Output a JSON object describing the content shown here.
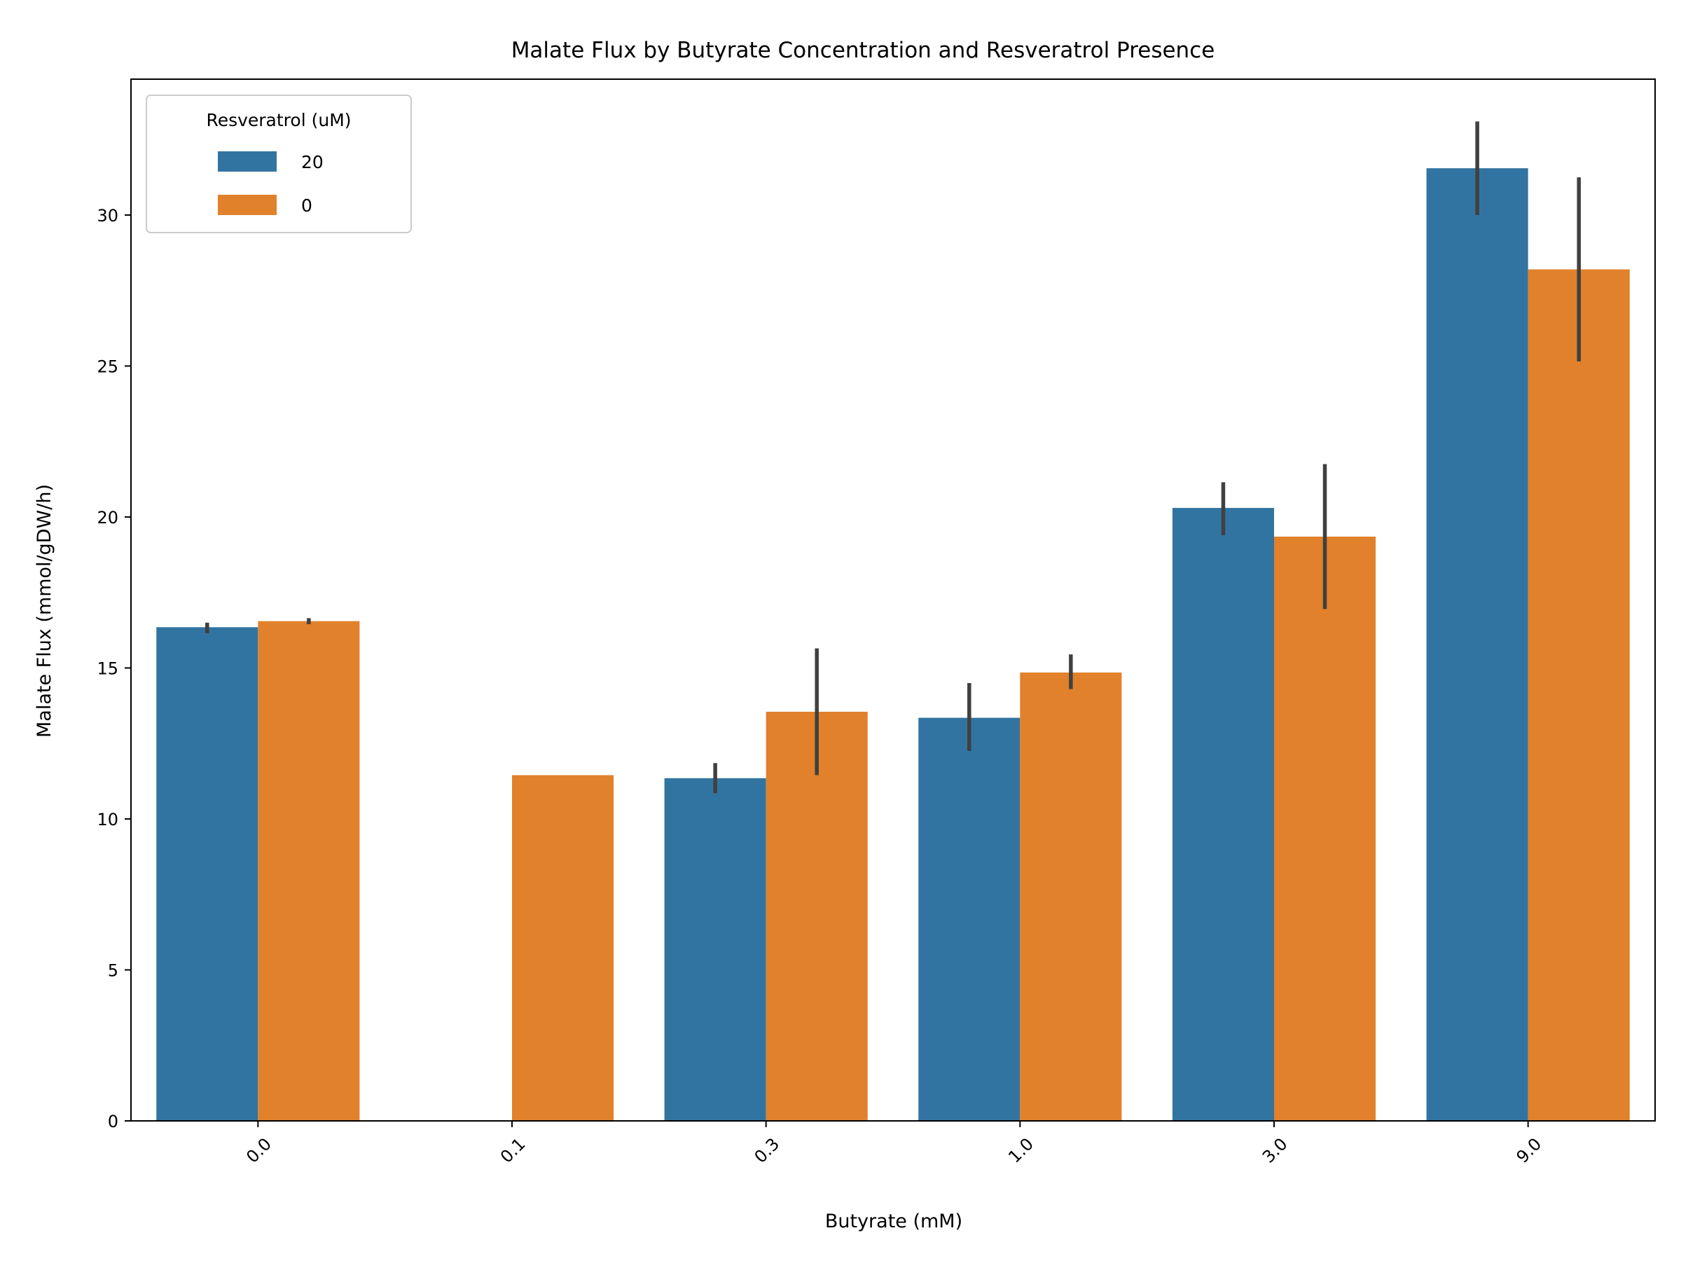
{
  "chart_data": {
    "type": "bar",
    "title": "Malate Flux by Butyrate Concentration and Resveratrol Presence",
    "xlabel": "Butyrate (mM)",
    "ylabel": "Malate Flux (mmol/gDW/h)",
    "categories": [
      "0.0",
      "0.1",
      "0.3",
      "1.0",
      "3.0",
      "9.0"
    ],
    "ylim": [
      0,
      34.5
    ],
    "yticks": [
      0,
      5,
      10,
      15,
      20,
      25,
      30
    ],
    "legend": {
      "title": "Resveratrol (uM)",
      "placement": "top-left"
    },
    "series": [
      {
        "name": "20",
        "color": "#3274a1",
        "values": [
          16.35,
          null,
          11.35,
          13.35,
          20.3,
          31.55
        ],
        "err_low": [
          16.15,
          null,
          10.85,
          12.25,
          19.4,
          30.0
        ],
        "err_high": [
          16.5,
          null,
          11.85,
          14.5,
          21.15,
          33.1
        ]
      },
      {
        "name": "0",
        "color": "#e1812c",
        "values": [
          16.55,
          11.45,
          13.55,
          14.85,
          19.35,
          28.2
        ],
        "err_low": [
          16.45,
          null,
          11.45,
          14.3,
          16.95,
          25.15
        ],
        "err_high": [
          16.65,
          null,
          15.65,
          15.45,
          21.75,
          31.25
        ]
      }
    ]
  }
}
